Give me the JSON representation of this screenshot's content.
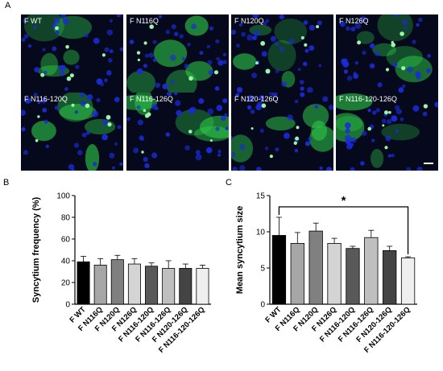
{
  "panels": {
    "a": "A",
    "b": "B",
    "c": "C"
  },
  "micrographs": [
    {
      "label": "F WT"
    },
    {
      "label": "F N116Q"
    },
    {
      "label": "F N120Q"
    },
    {
      "label": "F N126Q"
    },
    {
      "label": "F N116-120Q"
    },
    {
      "label": "F N116-126Q"
    },
    {
      "label": "F N120-126Q"
    },
    {
      "label": "F N116-120-126Q"
    }
  ],
  "colors": {
    "nuclei": "#1a2bd6",
    "cells": "#2fd24a",
    "background": "#06091c"
  },
  "chart_data": [
    {
      "type": "bar",
      "categories": [
        "F WT",
        "F N116Q",
        "F N120Q",
        "F N126Q",
        "F N116-120Q",
        "F N116-126Q",
        "F N120-126Q",
        "F N116-120-126Q"
      ],
      "values": [
        39,
        36,
        41,
        37,
        35,
        33,
        33,
        33
      ],
      "errors": [
        5,
        6,
        4,
        5,
        3,
        7,
        4,
        3
      ],
      "bar_colors": [
        "#000000",
        "#a6a6a6",
        "#808080",
        "#d4d4d4",
        "#595959",
        "#bfbfbf",
        "#444444",
        "#efefef"
      ],
      "title": "",
      "xlabel": "",
      "ylabel": "Syncytium frequency (%)",
      "ylim": [
        0,
        100
      ],
      "yticks": [
        "0",
        "20",
        "40",
        "60",
        "80",
        "100"
      ]
    },
    {
      "type": "bar",
      "categories": [
        "F WT",
        "F N116Q",
        "F N120Q",
        "F N126Q",
        "F N116-120Q",
        "F N116-126Q",
        "F N120-126Q",
        "F N116-120-126Q"
      ],
      "values": [
        9.5,
        8.4,
        10.1,
        8.4,
        7.7,
        9.2,
        7.4,
        6.4
      ],
      "errors": [
        2.5,
        1.5,
        1.1,
        0.7,
        0.3,
        1.0,
        0.6,
        0.15
      ],
      "bar_colors": [
        "#000000",
        "#a6a6a6",
        "#808080",
        "#d4d4d4",
        "#595959",
        "#bfbfbf",
        "#444444",
        "#efefef"
      ],
      "title": "",
      "xlabel": "",
      "ylabel": "Mean syncytium size",
      "ylim": [
        0,
        15
      ],
      "yticks": [
        "0",
        "5",
        "10",
        "15"
      ],
      "annotations": [
        {
          "text": "*",
          "from": "F WT",
          "to": "F N116-120-126Q"
        }
      ]
    }
  ]
}
